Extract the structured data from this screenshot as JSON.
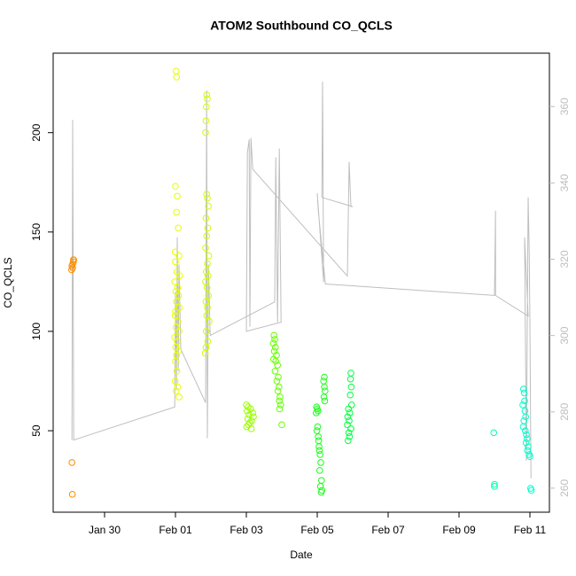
{
  "chart_data": {
    "type": "scatter",
    "title": "ATOM2 Southbound CO_QCLS",
    "xlabel": "Date",
    "ylabel": "CO_QCLS",
    "xlim": [
      28.55,
      42.55
    ],
    "ylim": [
      9,
      240
    ],
    "y2lim": [
      253.7,
      374
    ],
    "xticks": [
      {
        "value": 30,
        "label": "Jan 30"
      },
      {
        "value": 32,
        "label": "Feb 01"
      },
      {
        "value": 34,
        "label": "Feb 03"
      },
      {
        "value": 36,
        "label": "Feb 05"
      },
      {
        "value": 38,
        "label": "Feb 07"
      },
      {
        "value": 40,
        "label": "Feb 09"
      },
      {
        "value": 42,
        "label": "Feb 11"
      }
    ],
    "yticks": [
      50,
      100,
      150,
      200
    ],
    "y2ticks": [
      260,
      280,
      300,
      320,
      340,
      360
    ],
    "series": [
      {
        "type": "line",
        "axis": "y2",
        "color": "#bebebe",
        "x": [
          29.08,
          29.1,
          29.13,
          31.98,
          32.0,
          32.03,
          32.05,
          32.08,
          32.1,
          32.15,
          32.85,
          32.88,
          32.9,
          32.93,
          32.98,
          34.8,
          34.83,
          34.88,
          34.93,
          34.98,
          34.0,
          34.03,
          34.08,
          34.1,
          34.13,
          34.18,
          36.85,
          36.9,
          36.95,
          37.0,
          36.13,
          36.15,
          36.18,
          36.0,
          36.03,
          36.23,
          41.0,
          41.03,
          41.03,
          41.95,
          41.85,
          41.9,
          41.95,
          41.98,
          42.0,
          42.03
        ],
        "values": [
          272.6,
          356.5,
          272.6,
          281.3,
          311.6,
          285.9,
          325.7,
          290.6,
          318.6,
          296.4,
          282.4,
          364.2,
          273.1,
          318.6,
          300.0,
          308.8,
          346.7,
          303.5,
          349.0,
          303.5,
          301.1,
          347.9,
          351.4,
          302.3,
          351.8,
          343.6,
          315.6,
          345.5,
          333.8,
          333.8,
          336.2,
          366.5,
          314.0,
          337.3,
          332.7,
          313.5,
          310.5,
          332.7,
          310.5,
          305.1,
          325.7,
          267.2,
          336.2,
          322.1,
          303.5,
          262.6
        ]
      },
      {
        "color": "#ff8c00",
        "x": [
          29.08,
          29.1,
          29.07,
          29.12,
          29.13,
          29.1,
          29.12,
          29.08,
          29.09
        ],
        "values": [
          133,
          132,
          131,
          135,
          136,
          134,
          136,
          34,
          18
        ]
      },
      {
        "color": "#e6ff00",
        "x": [
          32.02,
          32.03,
          32.0,
          32.05,
          32.03,
          32.08,
          31.99,
          32.1,
          32.0,
          32.04,
          32.12,
          31.98,
          32.06,
          32.01,
          32.09,
          32.03,
          32.11,
          32.0,
          31.99,
          32.07,
          32.02,
          32.1,
          31.98,
          32.05,
          32.01,
          32.08,
          32.03,
          32.0,
          32.04,
          31.99,
          32.06,
          32.02,
          32.1
        ],
        "values": [
          231,
          228,
          173,
          168,
          160,
          152,
          140,
          138,
          135,
          130,
          128,
          125,
          122,
          120,
          118,
          115,
          112,
          110,
          108,
          105,
          102,
          100,
          97,
          95,
          92,
          90,
          88,
          85,
          80,
          75,
          72,
          70,
          67
        ]
      },
      {
        "color": "#ccff00",
        "x": [
          32.88,
          32.9,
          32.87,
          32.86,
          32.85,
          32.88,
          32.9,
          32.93,
          32.86,
          32.91,
          32.88,
          32.85,
          32.94,
          32.9,
          32.87,
          32.92,
          32.85,
          32.89,
          32.93,
          32.86,
          32.9,
          32.88,
          32.95,
          32.87,
          32.91,
          32.86,
          32.84
        ],
        "values": [
          219,
          217,
          213,
          206,
          200,
          169,
          167,
          163,
          157,
          152,
          148,
          142,
          138,
          134,
          130,
          128,
          125,
          122,
          118,
          115,
          112,
          108,
          105,
          100,
          95,
          92,
          89
        ]
      },
      {
        "color": "#99ff00",
        "x": [
          34.0,
          34.05,
          34.12,
          34.02,
          34.18,
          34.08,
          34.2,
          34.04,
          34.15,
          34.1,
          34.06,
          34.01,
          34.14
        ],
        "values": [
          63,
          62,
          61,
          60,
          59,
          58,
          57,
          56,
          55,
          54,
          53,
          52,
          51
        ]
      },
      {
        "color": "#66ff00",
        "x": [
          34.78,
          34.8,
          34.76,
          34.82,
          34.79,
          34.85,
          34.77,
          34.83,
          34.88,
          34.81,
          34.9,
          34.86,
          34.92,
          34.89,
          34.95,
          34.93,
          34.97,
          34.94,
          35.0
        ],
        "values": [
          98,
          96,
          94,
          92,
          90,
          88,
          86,
          85,
          83,
          80,
          77,
          75,
          72,
          70,
          67,
          65,
          63,
          61,
          53
        ]
      },
      {
        "color": "#1aff1a",
        "x": [
          36.2,
          36.18,
          36.2,
          36.22,
          36.19,
          36.21,
          35.98,
          36.0,
          36.02,
          35.97,
          36.01,
          35.99,
          36.03,
          36.04,
          36.05,
          36.06,
          36.08,
          36.1,
          36.07,
          36.12,
          36.09,
          36.13,
          36.11
        ],
        "values": [
          77,
          75,
          72,
          70,
          67,
          65,
          62,
          61,
          60,
          59,
          52,
          50,
          47,
          45,
          42,
          40,
          38,
          34,
          30,
          25,
          22,
          20,
          19
        ]
      },
      {
        "color": "#00ff40",
        "x": [
          36.95,
          36.94,
          36.96,
          36.93,
          36.97,
          36.88,
          36.92,
          36.86,
          36.9,
          36.85,
          36.95,
          36.89,
          36.91,
          36.87
        ],
        "values": [
          79,
          76,
          72,
          68,
          63,
          61,
          59,
          57,
          55,
          53,
          51,
          49,
          47,
          45
        ]
      },
      {
        "color": "#00ffaa",
        "x": [
          40.98,
          41.0,
          41.0
        ],
        "values": [
          49,
          23,
          22
        ]
      },
      {
        "color": "#00ffcc",
        "x": [
          41.82,
          41.84,
          41.85,
          41.8,
          41.86,
          41.88,
          41.83,
          41.81,
          41.87,
          41.9,
          41.92,
          41.89,
          41.95,
          41.93,
          41.98,
          42.0,
          42.02,
          42.04
        ],
        "values": [
          71,
          69,
          65,
          63,
          60,
          57,
          55,
          52,
          50,
          48,
          46,
          44,
          42,
          40,
          38,
          37,
          21,
          20
        ]
      }
    ]
  }
}
